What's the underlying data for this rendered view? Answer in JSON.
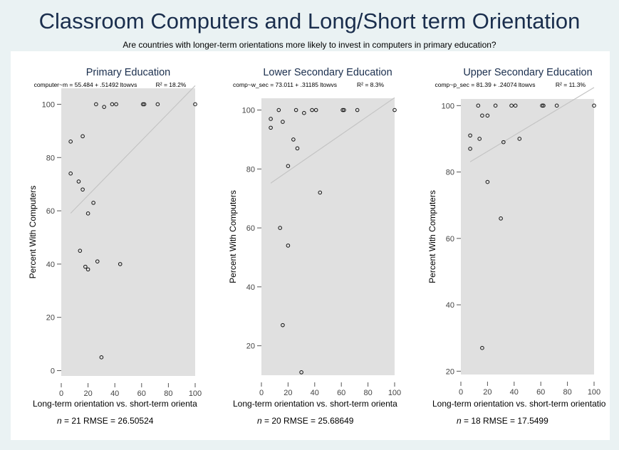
{
  "title": "Classroom Computers and Long/Short term Orientation",
  "subtitle": "Are countries with longer-term orientations more likely to invest in computers in primary education?",
  "colors": {
    "background": "#eaf2f3",
    "panel": "#ffffff",
    "plot_area": "#e0e0e0",
    "fit_line": "#c4c4c4",
    "title": "#1a2e4d"
  },
  "chart_data": [
    {
      "type": "scatter",
      "title": "Primary Education",
      "equation": "computer~m = 55.484 + .51492 ltowvs",
      "r2_label": "R² = 18.2%",
      "xlabel": "Long-term orientation vs. short-term orienta",
      "ylabel": "Percent With Computers",
      "xlim": [
        0,
        100
      ],
      "ylim": [
        -2,
        106
      ],
      "xticks": [
        0,
        20,
        40,
        60,
        80,
        100
      ],
      "yticks": [
        0,
        20,
        40,
        60,
        80,
        100
      ],
      "fit": {
        "intercept": 55.484,
        "slope": 0.51492,
        "x_range": [
          7,
          100
        ]
      },
      "points": [
        {
          "x": 7,
          "y": 86
        },
        {
          "x": 7,
          "y": 74
        },
        {
          "x": 13,
          "y": 71
        },
        {
          "x": 14,
          "y": 45
        },
        {
          "x": 16,
          "y": 68
        },
        {
          "x": 16,
          "y": 88
        },
        {
          "x": 18,
          "y": 39
        },
        {
          "x": 20,
          "y": 59
        },
        {
          "x": 20,
          "y": 38
        },
        {
          "x": 24,
          "y": 63
        },
        {
          "x": 26,
          "y": 100
        },
        {
          "x": 27,
          "y": 41
        },
        {
          "x": 30,
          "y": 5
        },
        {
          "x": 32,
          "y": 99
        },
        {
          "x": 38,
          "y": 100
        },
        {
          "x": 41,
          "y": 100
        },
        {
          "x": 44,
          "y": 40
        },
        {
          "x": 61,
          "y": 100
        },
        {
          "x": 62,
          "y": 100
        },
        {
          "x": 72,
          "y": 100
        },
        {
          "x": 100,
          "y": 100
        }
      ],
      "n": "21",
      "rmse": "26.50524"
    },
    {
      "type": "scatter",
      "title": "Lower Secondary Education",
      "equation": "comp~w_sec = 73.011 + .31185 ltowvs",
      "r2_label": "R² = 8.3%",
      "xlabel": "Long-term orientation vs. short-term orienta",
      "ylabel": "Percent With Computers",
      "xlim": [
        0,
        100
      ],
      "ylim": [
        10,
        104
      ],
      "xticks": [
        0,
        20,
        40,
        60,
        80,
        100
      ],
      "yticks": [
        20,
        40,
        60,
        80,
        100
      ],
      "fit": {
        "intercept": 73.011,
        "slope": 0.31185,
        "x_range": [
          7,
          100
        ]
      },
      "points": [
        {
          "x": 7,
          "y": 97
        },
        {
          "x": 7,
          "y": 94
        },
        {
          "x": 13,
          "y": 100
        },
        {
          "x": 14,
          "y": 60
        },
        {
          "x": 16,
          "y": 96
        },
        {
          "x": 16,
          "y": 27
        },
        {
          "x": 20,
          "y": 81
        },
        {
          "x": 20,
          "y": 54
        },
        {
          "x": 24,
          "y": 90
        },
        {
          "x": 26,
          "y": 100
        },
        {
          "x": 27,
          "y": 87
        },
        {
          "x": 30,
          "y": 11
        },
        {
          "x": 32,
          "y": 99
        },
        {
          "x": 38,
          "y": 100
        },
        {
          "x": 41,
          "y": 100
        },
        {
          "x": 44,
          "y": 72
        },
        {
          "x": 61,
          "y": 100
        },
        {
          "x": 62,
          "y": 100
        },
        {
          "x": 72,
          "y": 100
        },
        {
          "x": 100,
          "y": 100
        }
      ],
      "n": "20",
      "rmse": "25.68649"
    },
    {
      "type": "scatter",
      "title": "Upper Secondary Education",
      "equation": "comp~p_sec = 81.39 + .24074 ltowvs",
      "r2_label": "R² = 11.3%",
      "xlabel": "Long-term orientation vs. short-term orientatio",
      "ylabel": "Percent With Computers",
      "xlim": [
        0,
        100
      ],
      "ylim": [
        19,
        102
      ],
      "xticks": [
        0,
        20,
        40,
        60,
        80,
        100
      ],
      "yticks": [
        20,
        40,
        60,
        80,
        100
      ],
      "fit": {
        "intercept": 81.39,
        "slope": 0.24074,
        "x_range": [
          7,
          100
        ]
      },
      "points": [
        {
          "x": 7,
          "y": 91
        },
        {
          "x": 7,
          "y": 87
        },
        {
          "x": 13,
          "y": 100
        },
        {
          "x": 14,
          "y": 90
        },
        {
          "x": 16,
          "y": 97
        },
        {
          "x": 16,
          "y": 27
        },
        {
          "x": 20,
          "y": 97
        },
        {
          "x": 20,
          "y": 77
        },
        {
          "x": 26,
          "y": 100
        },
        {
          "x": 30,
          "y": 66
        },
        {
          "x": 32,
          "y": 89
        },
        {
          "x": 38,
          "y": 100
        },
        {
          "x": 41,
          "y": 100
        },
        {
          "x": 44,
          "y": 90
        },
        {
          "x": 61,
          "y": 100
        },
        {
          "x": 62,
          "y": 100
        },
        {
          "x": 72,
          "y": 100
        },
        {
          "x": 100,
          "y": 100
        }
      ],
      "n": "18",
      "rmse": "17.5499"
    }
  ]
}
